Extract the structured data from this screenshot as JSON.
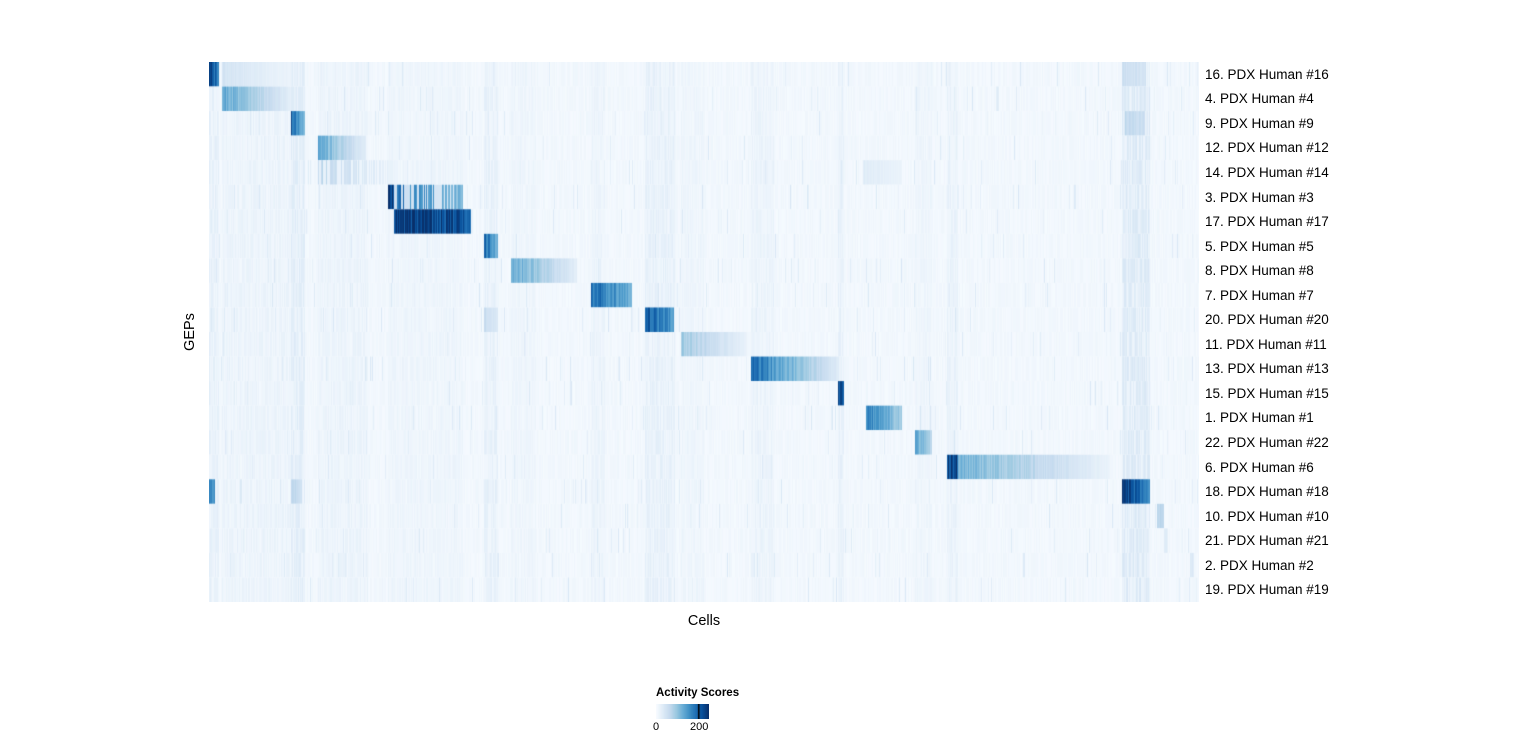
{
  "chart_data": {
    "type": "heatmap",
    "title": "",
    "xlabel": "Cells",
    "ylabel": "GEPs",
    "legend": {
      "title": "Activity Scores",
      "max_value": 245,
      "ticks": [
        {
          "value": 0,
          "label": "0",
          "pos": 0.0
        },
        {
          "value": 200,
          "label": "200",
          "pos": 0.816
        }
      ]
    },
    "colormap_stops": [
      [
        0.0,
        "#f7fbff"
      ],
      [
        0.125,
        "#deebf7"
      ],
      [
        0.25,
        "#c6dbef"
      ],
      [
        0.375,
        "#9ecae1"
      ],
      [
        0.5,
        "#6baed6"
      ],
      [
        0.625,
        "#4292c6"
      ],
      [
        0.75,
        "#2171b5"
      ],
      [
        0.875,
        "#08519c"
      ],
      [
        1.0,
        "#08306b"
      ]
    ],
    "noise": {
      "seed": 42
    },
    "noise_bands": [
      {
        "x0": 0.0,
        "x1": 0.01,
        "v": 0.08
      },
      {
        "x0": 0.013,
        "x1": 0.082,
        "v": 0.06
      },
      {
        "x0": 0.082,
        "x1": 0.096,
        "v": 0.1
      },
      {
        "x0": 0.11,
        "x1": 0.16,
        "v": 0.06
      },
      {
        "x0": 0.18,
        "x1": 0.256,
        "v": 0.05
      },
      {
        "x0": 0.277,
        "x1": 0.291,
        "v": 0.08
      },
      {
        "x0": 0.305,
        "x1": 0.33,
        "v": 0.05
      },
      {
        "x0": 0.385,
        "x1": 0.4,
        "v": 0.06
      },
      {
        "x0": 0.44,
        "x1": 0.47,
        "v": 0.08
      },
      {
        "x0": 0.476,
        "x1": 0.5,
        "v": 0.05
      },
      {
        "x0": 0.547,
        "x1": 0.57,
        "v": 0.06
      },
      {
        "x0": 0.635,
        "x1": 0.641,
        "v": 0.08
      },
      {
        "x0": 0.713,
        "x1": 0.73,
        "v": 0.05
      },
      {
        "x0": 0.745,
        "x1": 0.756,
        "v": 0.07
      },
      {
        "x0": 0.922,
        "x1": 0.95,
        "v": 0.12
      }
    ],
    "rows": [
      {
        "label": "16. PDX Human #16",
        "segments": [
          {
            "x0": 0.0,
            "x1": 0.01,
            "v0": 0.92,
            "v1": 0.75
          },
          {
            "x0": 0.013,
            "x1": 0.082,
            "v0": 0.18,
            "v1": 0.05
          },
          {
            "x0": 0.922,
            "x1": 0.946,
            "v0": 0.22,
            "v1": 0.18
          }
        ]
      },
      {
        "label": "4. PDX Human #4",
        "segments": [
          {
            "x0": 0.013,
            "x1": 0.082,
            "v0": 0.55,
            "v1": 0.1
          }
        ]
      },
      {
        "label": "9. PDX Human #9",
        "segments": [
          {
            "x0": 0.082,
            "x1": 0.096,
            "v0": 0.85,
            "v1": 0.45
          },
          {
            "x0": 0.925,
            "x1": 0.945,
            "v0": 0.28,
            "v1": 0.22
          }
        ]
      },
      {
        "label": "12. PDX Human #12",
        "segments": [
          {
            "x0": 0.11,
            "x1": 0.158,
            "v0": 0.55,
            "v1": 0.1
          }
        ]
      },
      {
        "label": "14. PDX Human #14",
        "segments": [
          {
            "x0": 0.11,
            "x1": 0.19,
            "v0": 0.28,
            "v1": 0.06,
            "striped": true
          },
          {
            "x0": 0.66,
            "x1": 0.7,
            "v0": 0.12,
            "v1": 0.06
          }
        ]
      },
      {
        "label": "3. PDX Human #3",
        "segments": [
          {
            "x0": 0.18,
            "x1": 0.186,
            "v0": 0.98,
            "v1": 0.95
          },
          {
            "x0": 0.186,
            "x1": 0.256,
            "v0": 0.75,
            "v1": 0.45,
            "striped": true
          }
        ]
      },
      {
        "label": "17. PDX Human #17",
        "segments": [
          {
            "x0": 0.186,
            "x1": 0.264,
            "v0": 0.98,
            "v1": 0.88
          }
        ]
      },
      {
        "label": "5. PDX Human #5",
        "segments": [
          {
            "x0": 0.277,
            "x1": 0.291,
            "v0": 0.85,
            "v1": 0.5
          }
        ]
      },
      {
        "label": "8. PDX Human #8",
        "segments": [
          {
            "x0": 0.305,
            "x1": 0.371,
            "v0": 0.55,
            "v1": 0.1
          }
        ]
      },
      {
        "label": "7. PDX Human #7",
        "segments": [
          {
            "x0": 0.385,
            "x1": 0.427,
            "v0": 0.8,
            "v1": 0.5
          }
        ]
      },
      {
        "label": "20. PDX Human #20",
        "segments": [
          {
            "x0": 0.277,
            "x1": 0.291,
            "v0": 0.25,
            "v1": 0.15
          },
          {
            "x0": 0.44,
            "x1": 0.469,
            "v0": 0.88,
            "v1": 0.6
          }
        ]
      },
      {
        "label": "11. PDX Human #11",
        "segments": [
          {
            "x0": 0.476,
            "x1": 0.543,
            "v0": 0.38,
            "v1": 0.07
          }
        ]
      },
      {
        "label": "13. PDX Human #13",
        "segments": [
          {
            "x0": 0.547,
            "x1": 0.636,
            "v0": 0.78,
            "v1": 0.12
          }
        ]
      },
      {
        "label": "15. PDX Human #15",
        "segments": [
          {
            "x0": 0.635,
            "x1": 0.641,
            "v0": 0.92,
            "v1": 0.8
          }
        ]
      },
      {
        "label": "1. PDX Human #1",
        "segments": [
          {
            "x0": 0.663,
            "x1": 0.7,
            "v0": 0.72,
            "v1": 0.35
          }
        ]
      },
      {
        "label": "22. PDX Human #22",
        "segments": [
          {
            "x0": 0.713,
            "x1": 0.73,
            "v0": 0.55,
            "v1": 0.28
          }
        ]
      },
      {
        "label": "6. PDX Human #6",
        "segments": [
          {
            "x0": 0.745,
            "x1": 0.756,
            "v0": 0.97,
            "v1": 0.9
          },
          {
            "x0": 0.756,
            "x1": 0.91,
            "v0": 0.5,
            "v1": 0.06
          }
        ]
      },
      {
        "label": "18. PDX Human #18",
        "segments": [
          {
            "x0": 0.0,
            "x1": 0.006,
            "v0": 0.75,
            "v1": 0.6
          },
          {
            "x0": 0.082,
            "x1": 0.093,
            "v0": 0.3,
            "v1": 0.2
          },
          {
            "x0": 0.922,
            "x1": 0.95,
            "v0": 0.97,
            "v1": 0.65
          }
        ]
      },
      {
        "label": "10. PDX Human #10",
        "segments": [
          {
            "x0": 0.957,
            "x1": 0.964,
            "v0": 0.35,
            "v1": 0.25
          }
        ]
      },
      {
        "label": "21. PDX Human #21",
        "segments": [
          {
            "x0": 0.964,
            "x1": 0.968,
            "v0": 0.15,
            "v1": 0.1
          }
        ]
      },
      {
        "label": "2. PDX Human #2",
        "segments": [
          {
            "x0": 0.99,
            "x1": 0.994,
            "v0": 0.18,
            "v1": 0.12
          }
        ]
      },
      {
        "label": "19. PDX Human #19",
        "segments": []
      }
    ]
  }
}
